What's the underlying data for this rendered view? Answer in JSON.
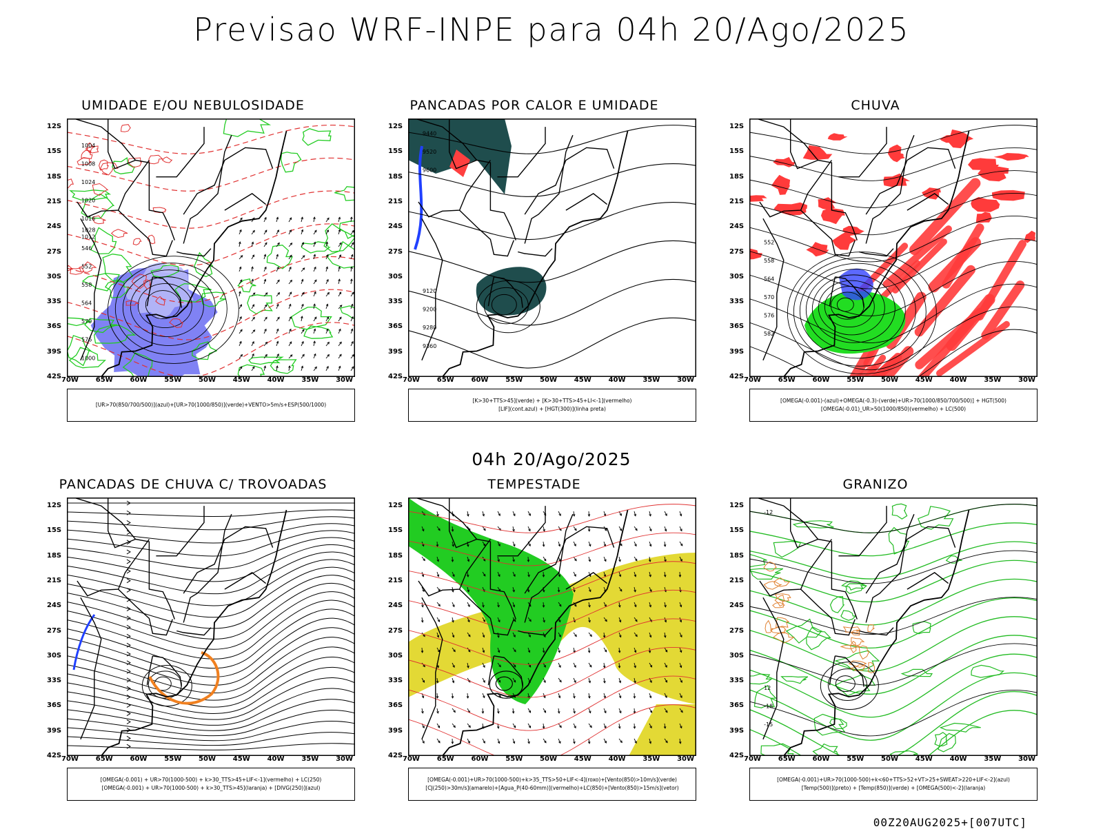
{
  "title": "Previsao WRF-INPE  para 04h 20/Ago/2025",
  "subtitle": "04h 20/Ago/2025",
  "footer": "00Z20AUG2025+[007UTC]",
  "lat_labels": [
    "12S",
    "15S",
    "18S",
    "21S",
    "24S",
    "27S",
    "30S",
    "33S",
    "36S",
    "39S",
    "42S"
  ],
  "lon_labels": [
    "70W",
    "65W",
    "60W",
    "55W",
    "50W",
    "45W",
    "40W",
    "35W",
    "30W"
  ],
  "panels": [
    {
      "title": "UMIDADE E/OU NEBULOSIDADE",
      "legend": [
        "[UR>70(850/700/500)](azul)+[UR>70(1000/850)](verde)+VENTO>5m/s+ESP(500/1000)"
      ],
      "contour_labels": [
        "1012",
        "1016",
        "1020",
        "1024",
        "1008",
        "1004",
        "1000",
        "576",
        "570",
        "564",
        "558",
        "552",
        "546",
        "1028"
      ]
    },
    {
      "title": "PANCADAS POR CALOR E UMIDADE",
      "legend": [
        "[K>30+TTS>45](verde) + [K>30+TTS>45+LI<-1](vermelho)",
        "[LIF](cont.azul) + [HGT(300)](linha preta)"
      ],
      "contour_labels": [
        "9600",
        "9520",
        "9440",
        "9360",
        "9280",
        "9200",
        "9120"
      ]
    },
    {
      "title": "CHUVA",
      "legend": [
        "[OMEGA(-0.001)-(azul)+OMEGA(-0.3)-(verde)+UR>70(1000/850/700/500)] + HGT(500)",
        "[OMEGA(-0.01)_UR>50(1000/850)(vermelho) + LC(500)"
      ],
      "contour_labels": [
        "582",
        "576",
        "570",
        "564",
        "558",
        "552"
      ]
    },
    {
      "title": "PANCADAS DE CHUVA C/ TROVOADAS",
      "legend": [
        "[OMEGA(-0.001) + UR>70(1000-500) + k>30_TTS>45+LIF<-1](vermelho) + LC(250)",
        "[OMEGA(-0.001) + UR>70(1000-500) + k>30_TTS>45](laranja) + [DIVG(250)](azul)"
      ],
      "contour_labels": []
    },
    {
      "title": "TEMPESTADE",
      "legend": [
        "[OMEGA(-0.001)+UR>70(1000-500)+k>35_TTS>50+LIF<-4](roxo)+[Vento(850)>10m/s](verde)",
        "[CJ(250)>30m/s](amarelo)+[Agua_P(40-60mm)](vermelho)+LC(850)+[Vento(850)>15m/s](vetor)"
      ],
      "contour_labels": []
    },
    {
      "title": "GRANIZO",
      "legend": [
        "[OMEGA(-0.001)+UR>70(1000-500)+k<60+TTS>52+VT>25+SWEAT>220+LIF<-2](azul)",
        "[Temp(500)](preto) + [Temp(850)](verde) + [OMEGA(500)<-2](laranja)"
      ],
      "contour_labels": [
        "-12",
        "-15",
        "-18",
        "12"
      ]
    }
  ]
}
